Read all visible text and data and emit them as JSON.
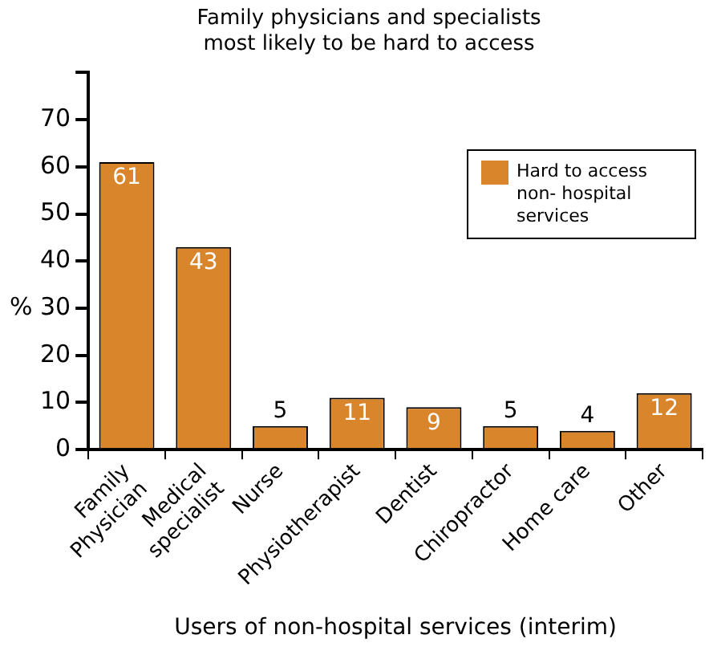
{
  "chart_data": {
    "type": "bar",
    "title": "Family physicians and specialists\nmost likely to be hard to access",
    "xlabel": "Users of non-hospital services (interim)",
    "ylabel": "%",
    "categories": [
      "Family\nPhysician",
      "Medical\nspecialist",
      "Nurse",
      "Physiotherapist",
      "Dentist",
      "Chiropractor",
      "Home care",
      "Other"
    ],
    "series": [
      {
        "name": "Hard to access non- hospital services",
        "color": "#d9852b",
        "values": [
          61,
          43,
          5,
          11,
          9,
          5,
          4,
          12
        ]
      }
    ],
    "ylim": [
      0,
      80
    ],
    "yticks": [
      0,
      10,
      20,
      30,
      40,
      50,
      60,
      70,
      {
        "value": 80,
        "label": null
      }
    ],
    "grid": false,
    "legend": "top right",
    "data_labels": true
  }
}
